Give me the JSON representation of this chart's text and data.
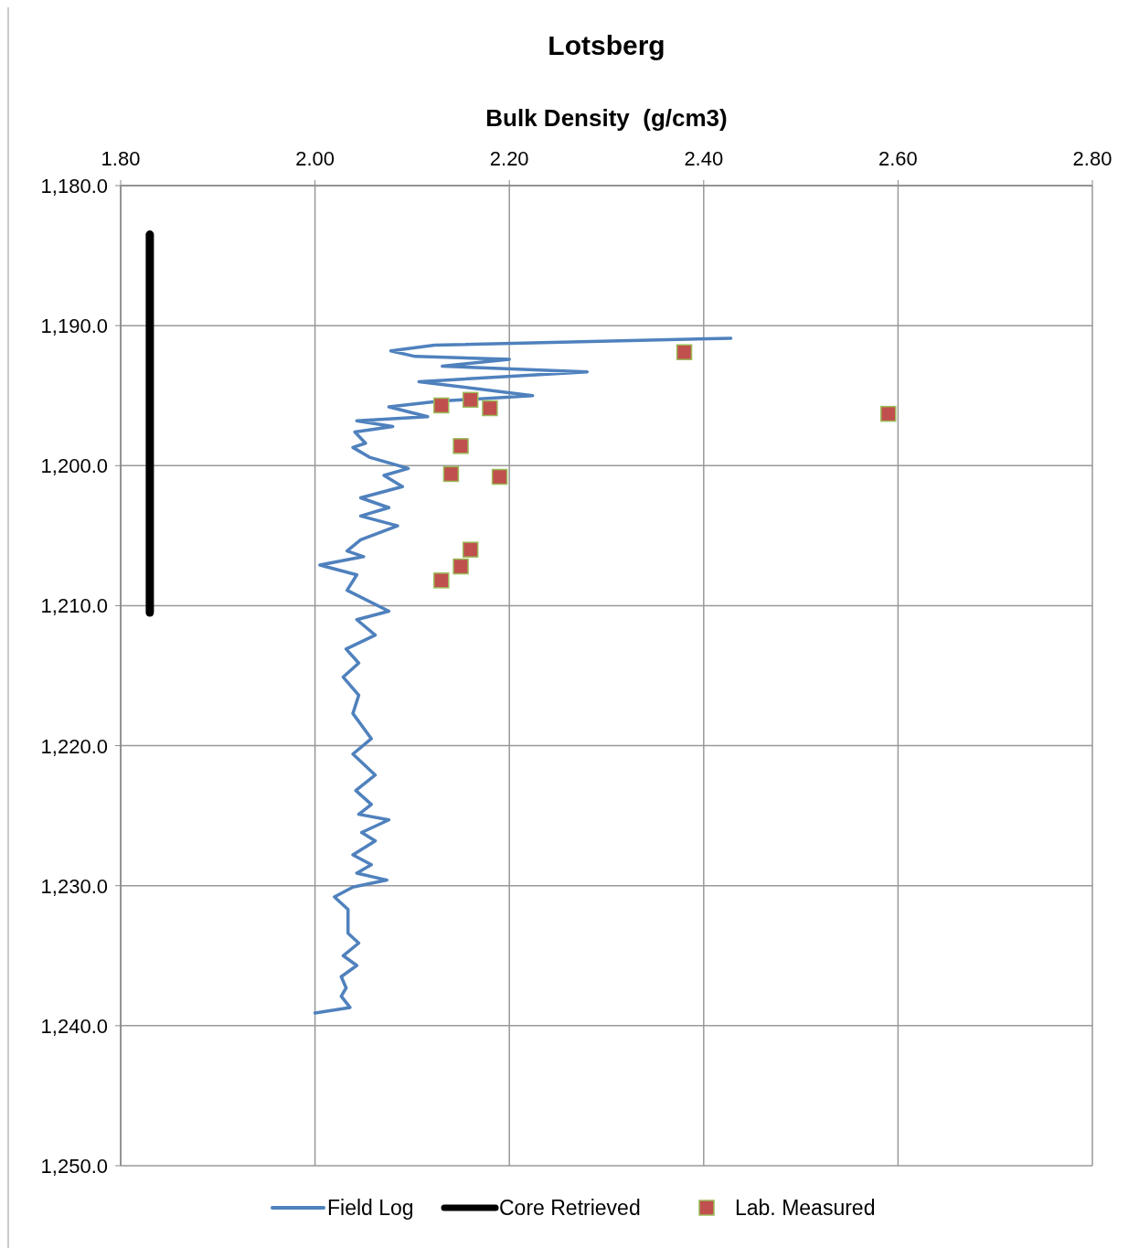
{
  "chart_data": {
    "type": "line",
    "title": "Lotsberg",
    "xlabel": "Bulk Density  (g/cm3)",
    "xlim": [
      1.8,
      2.8
    ],
    "xticks": [
      {
        "value": 1.8,
        "label": "1.80"
      },
      {
        "value": 2.0,
        "label": "2.00"
      },
      {
        "value": 2.2,
        "label": "2.20"
      },
      {
        "value": 2.4,
        "label": "2.40"
      },
      {
        "value": 2.6,
        "label": "2.60"
      },
      {
        "value": 2.8,
        "label": "2.80"
      }
    ],
    "ylim": [
      1250,
      1180
    ],
    "yticks": [
      {
        "value": 1180,
        "label": "1,180.0"
      },
      {
        "value": 1190,
        "label": "1,190.0"
      },
      {
        "value": 1200,
        "label": "1,200.0"
      },
      {
        "value": 1210,
        "label": "1,210.0"
      },
      {
        "value": 1220,
        "label": "1,220.0"
      },
      {
        "value": 1230,
        "label": "1,230.0"
      },
      {
        "value": 1240,
        "label": "1,240.0"
      },
      {
        "value": 1250,
        "label": "1,250.0"
      }
    ],
    "grid": true,
    "legend": "bottom",
    "series": [
      {
        "name": "Field Log",
        "color": "#4f81bd",
        "marker": "none",
        "x": [
          2.428,
          2.123,
          2.078,
          2.103,
          2.2,
          2.131,
          2.28,
          2.107,
          2.224,
          2.128,
          2.076,
          2.116,
          2.043,
          2.08,
          2.041,
          2.052,
          2.039,
          2.056,
          2.096,
          2.071,
          2.09,
          2.047,
          2.076,
          2.047,
          2.085,
          2.047,
          2.033,
          2.05,
          2.005,
          2.043,
          2.033,
          2.076,
          2.043,
          2.062,
          2.032,
          2.045,
          2.029,
          2.045,
          2.039,
          2.058,
          2.039,
          2.062,
          2.042,
          2.058,
          2.045,
          2.076,
          2.048,
          2.062,
          2.039,
          2.058,
          2.043,
          2.074,
          2.039,
          2.02,
          2.034,
          2.034,
          2.045,
          2.029,
          2.043,
          2.027,
          2.032,
          2.027,
          2.036,
          2.0
        ],
        "values": [
          1190.9,
          1191.4,
          1191.8,
          1192.2,
          1192.4,
          1192.9,
          1193.3,
          1194.0,
          1195.0,
          1195.4,
          1195.8,
          1196.5,
          1196.8,
          1197.2,
          1197.6,
          1198.4,
          1198.7,
          1199.4,
          1200.2,
          1200.7,
          1201.5,
          1202.3,
          1203.0,
          1203.6,
          1204.3,
          1205.3,
          1206.1,
          1206.5,
          1207.1,
          1207.8,
          1208.9,
          1210.4,
          1211.0,
          1212.1,
          1213.1,
          1214.1,
          1215.1,
          1216.4,
          1217.7,
          1219.5,
          1220.6,
          1222.1,
          1223.2,
          1224.2,
          1224.9,
          1225.3,
          1226.2,
          1226.8,
          1227.8,
          1228.5,
          1229.1,
          1229.6,
          1230.1,
          1230.8,
          1231.7,
          1233.4,
          1234.1,
          1235.0,
          1235.7,
          1236.5,
          1237.3,
          1237.9,
          1238.7,
          1239.1
        ]
      },
      {
        "name": "Core Retrieved",
        "color": "#000000",
        "marker": "none",
        "x": [
          1.83,
          1.83
        ],
        "values": [
          1183.5,
          1210.5
        ]
      },
      {
        "name": "Lab. Measured",
        "type": "scatter",
        "color": "#c0504d",
        "marker": "square",
        "x": [
          2.38,
          2.59,
          2.13,
          2.16,
          2.18,
          2.15,
          2.14,
          2.19,
          2.16,
          2.15,
          2.13
        ],
        "values": [
          1191.9,
          1196.3,
          1195.7,
          1195.3,
          1195.9,
          1198.6,
          1200.6,
          1200.8,
          1206.0,
          1207.2,
          1208.2
        ]
      }
    ]
  }
}
